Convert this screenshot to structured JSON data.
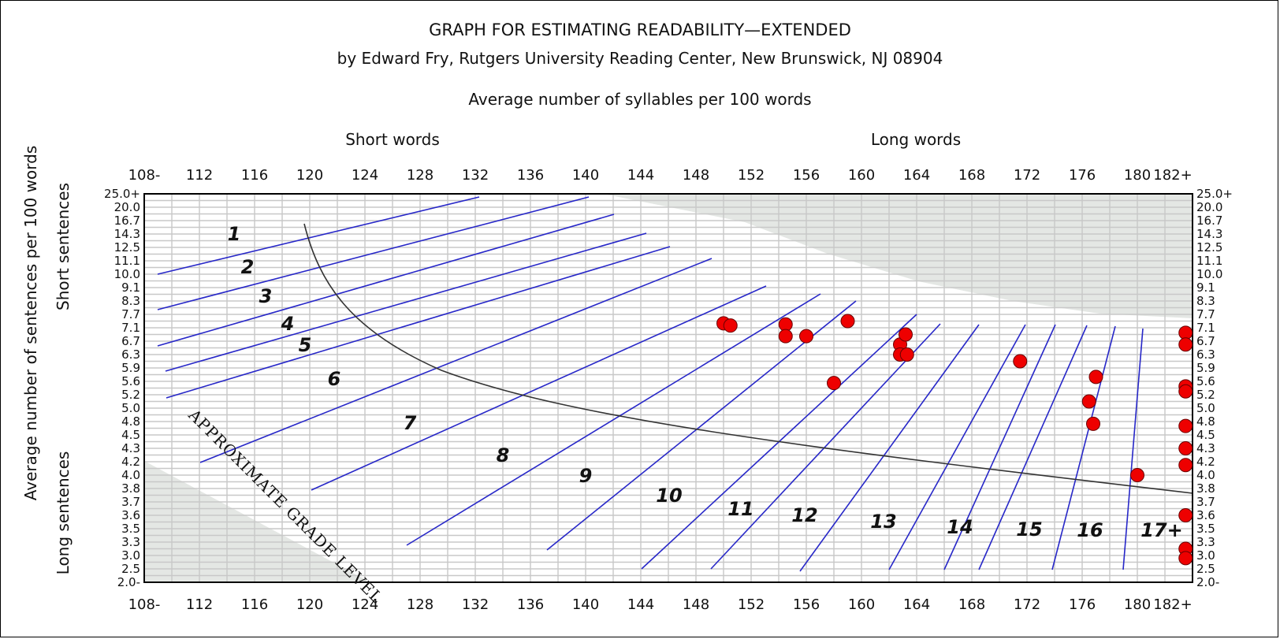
{
  "chart_data": {
    "type": "scatter",
    "title": "GRAPH FOR ESTIMATING READABILITY—EXTENDED",
    "subtitle": "by Edward Fry, Rutgers University Reading Center, New Brunswick, NJ 08904",
    "xlabel": "Average number of syllables per 100 words",
    "ylabel": "Average number of sentences per 100 words",
    "x_top_labels": {
      "left": "Short words",
      "right": "Long words"
    },
    "y_side_labels": {
      "top": "Short sentences",
      "bottom": "Long sentences"
    },
    "diagonal_label": "APPROXIMATE GRADE LEVEL",
    "x_ticks": [
      "108-",
      "112",
      "116",
      "120",
      "124",
      "128",
      "132",
      "136",
      "140",
      "144",
      "148",
      "152",
      "156",
      "160",
      "164",
      "168",
      "172",
      "176",
      "180",
      "182+"
    ],
    "xlim": [
      108,
      184
    ],
    "y_ticks": [
      "25.0+",
      "20.0",
      "16.7",
      "14.3",
      "12.5",
      "11.1",
      "10.0",
      "9.1",
      "8.3",
      "7.7",
      "7.1",
      "6.7",
      "6.3",
      "5.9",
      "5.6",
      "5.2",
      "5.0",
      "4.8",
      "4.5",
      "4.3",
      "4.2",
      "4.0",
      "3.8",
      "3.7",
      "3.6",
      "3.5",
      "3.3",
      "3.0",
      "2.5",
      "2.0-"
    ],
    "y_scale": "ordinal (tick positions evenly spaced)",
    "grid": true,
    "grade_levels": [
      "1",
      "2",
      "3",
      "4",
      "5",
      "6",
      "7",
      "8",
      "9",
      "10",
      "11",
      "12",
      "13",
      "14",
      "15",
      "16",
      "17+"
    ],
    "points": [
      {
        "x": 150,
        "y": 7.3
      },
      {
        "x": 150.5,
        "y": 7.2
      },
      {
        "x": 154.5,
        "y": 7.25
      },
      {
        "x": 154.5,
        "y": 6.85
      },
      {
        "x": 156,
        "y": 6.85
      },
      {
        "x": 159,
        "y": 7.4
      },
      {
        "x": 158,
        "y": 5.55
      },
      {
        "x": 162.8,
        "y": 6.6
      },
      {
        "x": 163.2,
        "y": 6.9
      },
      {
        "x": 162.8,
        "y": 6.3
      },
      {
        "x": 163.3,
        "y": 6.3
      },
      {
        "x": 171.5,
        "y": 6.1
      },
      {
        "x": 177,
        "y": 5.7
      },
      {
        "x": 176.5,
        "y": 5.1
      },
      {
        "x": 176.8,
        "y": 4.75
      },
      {
        "x": 180,
        "y": 4.0
      },
      {
        "x": 183.5,
        "y": 6.95
      },
      {
        "x": 183.5,
        "y": 6.6
      },
      {
        "x": 183.5,
        "y": 5.45
      },
      {
        "x": 183.5,
        "y": 5.3
      },
      {
        "x": 183.5,
        "y": 4.7
      },
      {
        "x": 183.5,
        "y": 4.3
      },
      {
        "x": 183.5,
        "y": 4.15
      },
      {
        "x": 183.5,
        "y": 3.6
      },
      {
        "x": 183.5,
        "y": 3.15
      },
      {
        "x": 183.5,
        "y": 2.9
      }
    ],
    "colors": {
      "grade_lines": "#2727c8",
      "curve": "#333333",
      "points": "#ee0000",
      "invalid_area": "#e4e7e4"
    }
  }
}
